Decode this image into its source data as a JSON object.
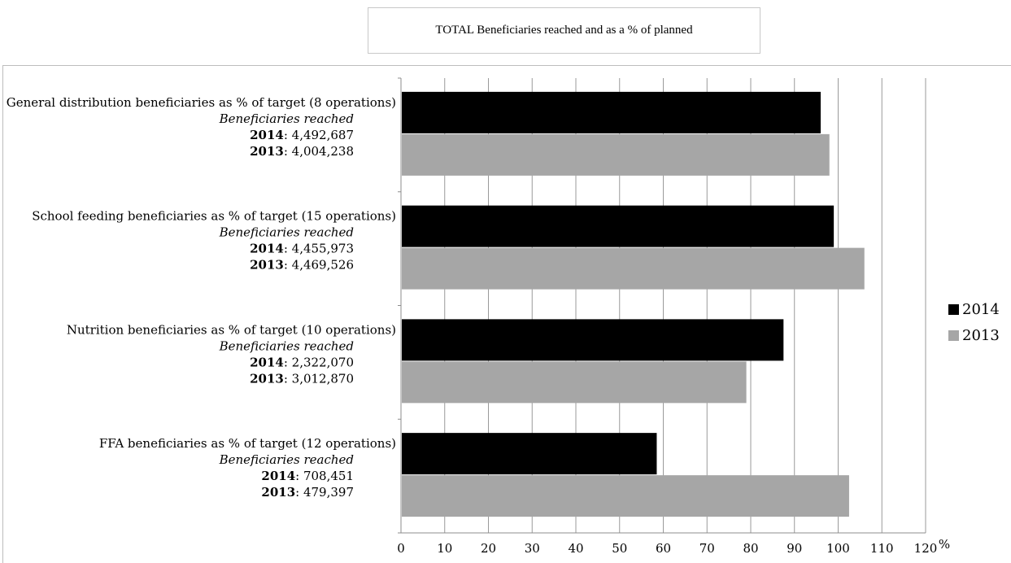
{
  "title": "TOTAL Beneficiaries reached and as a % of planned",
  "unit_label": "%",
  "colors": {
    "2014": "#000000",
    "2013": "#a6a6a6",
    "grid": "#9a9a9a"
  },
  "legend": [
    {
      "label": "2014",
      "color": "#000000"
    },
    {
      "label": "2013",
      "color": "#a6a6a6"
    }
  ],
  "categories": [
    {
      "label": "General distribution beneficiaries as % of target (8 operations)",
      "sublabel": "Beneficiaries reached",
      "lines": [
        {
          "year": "2014",
          "value": "4,492,687"
        },
        {
          "year": "2013",
          "value": "4,004,238"
        }
      ]
    },
    {
      "label": "School feeding beneficiaries as % of target (15 operations)",
      "sublabel": "Beneficiaries reached",
      "lines": [
        {
          "year": "2014",
          "value": "4,455,973"
        },
        {
          "year": "2013",
          "value": "4,469,526"
        }
      ]
    },
    {
      "label": "Nutrition beneficiaries as % of target (10 operations)",
      "sublabel": "Beneficiaries reached",
      "lines": [
        {
          "year": "2014",
          "value": "2,322,070"
        },
        {
          "year": "2013",
          "value": "3,012,870"
        }
      ]
    },
    {
      "label": "FFA beneficiaries as % of target (12 operations)",
      "sublabel": "Beneficiaries reached",
      "lines": [
        {
          "year": "2014",
          "value": "708,451"
        },
        {
          "year": "2013",
          "value": "479,397"
        }
      ]
    }
  ],
  "chart_data": {
    "type": "bar",
    "orientation": "horizontal",
    "title": "TOTAL Beneficiaries reached and as a % of planned",
    "categories": [
      "General distribution beneficiaries as % of target (8 operations)",
      "School feeding beneficiaries as % of target (15 operations)",
      "Nutrition beneficiaries as % of target (10 operations)",
      "FFA beneficiaries as % of target (12 operations)"
    ],
    "series": [
      {
        "name": "2014",
        "values": [
          96,
          99,
          87.5,
          58.5
        ]
      },
      {
        "name": "2013",
        "values": [
          98,
          106,
          79,
          102.5
        ]
      }
    ],
    "xlim": [
      0,
      120
    ],
    "xticks": [
      0,
      10,
      20,
      30,
      40,
      50,
      60,
      70,
      80,
      90,
      100,
      110,
      120
    ],
    "xlabel": "%",
    "grid": true,
    "legend_position": "right"
  }
}
